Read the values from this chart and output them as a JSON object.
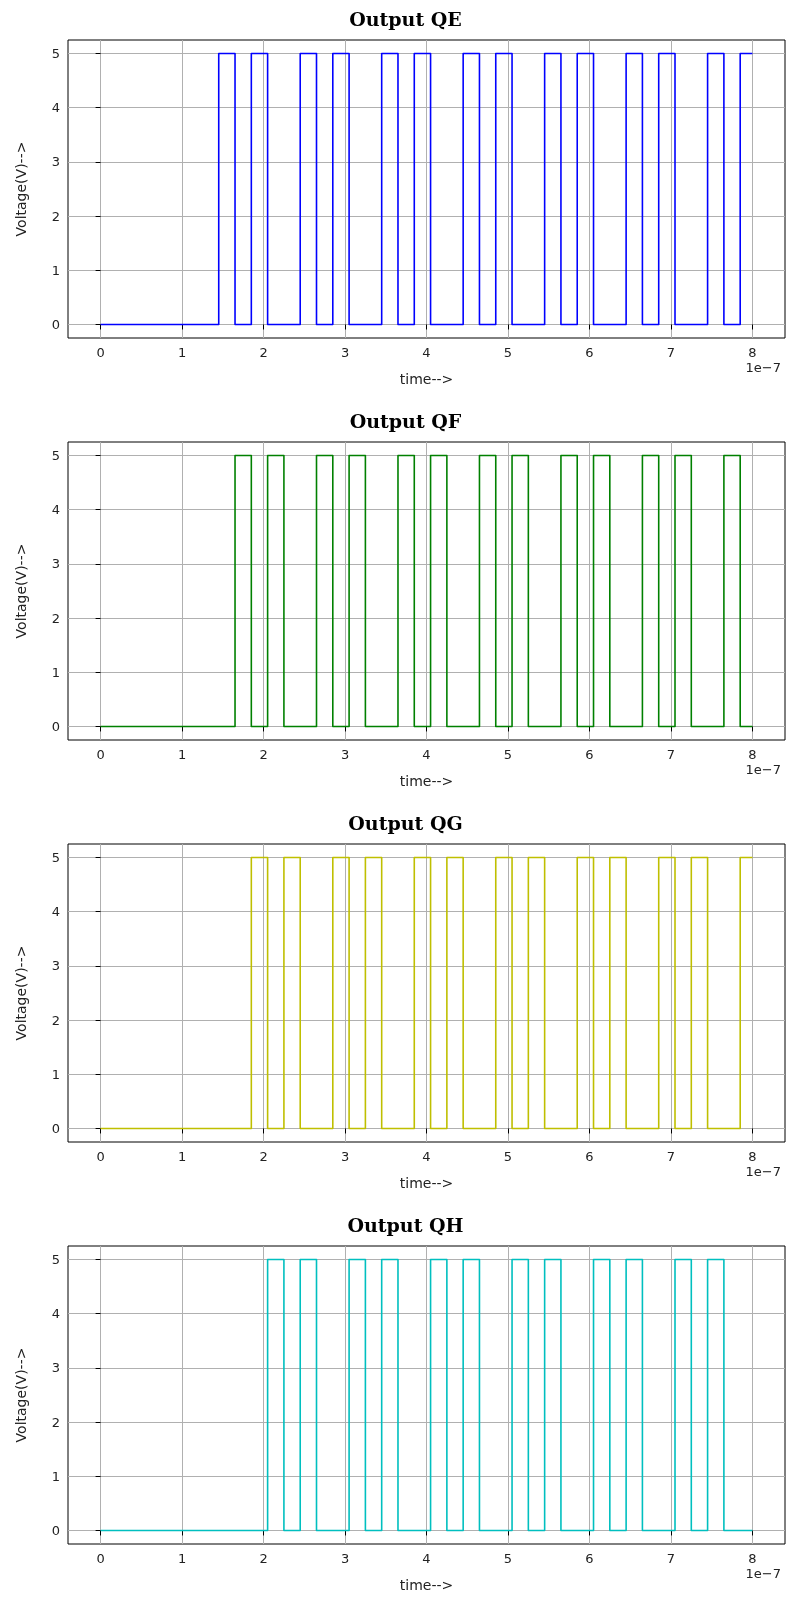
{
  "chart_data": [
    {
      "type": "step",
      "title": "Output QE",
      "xlabel": "time-->",
      "ylabel": "Voltage(V)-->",
      "annotations": [
        "1e−7"
      ],
      "xlim": [
        -0.4,
        8.4
      ],
      "xticks": [
        0,
        1,
        2,
        3,
        4,
        5,
        6,
        7,
        8
      ],
      "ylim": [
        -0.25,
        5.25
      ],
      "yticks": [
        0,
        1,
        2,
        3,
        4,
        5
      ],
      "grid": true,
      "series": [
        {
          "color": "#0000ff",
          "x": [
            0,
            1.45,
            1.65,
            1.85,
            2.05,
            2.45,
            2.65,
            2.85,
            3.05,
            3.45,
            3.65,
            3.85,
            4.05,
            4.45,
            4.65,
            4.85,
            5.05,
            5.45,
            5.65,
            5.85,
            6.05,
            6.45,
            6.65,
            6.85,
            7.05,
            7.45,
            7.65,
            7.85,
            8
          ],
          "values": [
            0,
            5,
            0,
            5,
            0,
            5,
            0,
            5,
            0,
            5,
            0,
            5,
            0,
            5,
            0,
            5,
            0,
            5,
            0,
            5,
            0,
            5,
            0,
            5,
            0,
            5,
            0,
            5,
            5
          ]
        }
      ]
    },
    {
      "type": "step",
      "title": "Output QF",
      "xlabel": "time-->",
      "ylabel": "Voltage(V)-->",
      "annotations": [
        "1e−7"
      ],
      "xlim": [
        -0.4,
        8.4
      ],
      "xticks": [
        0,
        1,
        2,
        3,
        4,
        5,
        6,
        7,
        8
      ],
      "ylim": [
        -0.25,
        5.25
      ],
      "yticks": [
        0,
        1,
        2,
        3,
        4,
        5
      ],
      "grid": true,
      "series": [
        {
          "color": "#008000",
          "x": [
            0,
            1.65,
            1.85,
            2.05,
            2.25,
            2.65,
            2.85,
            3.05,
            3.25,
            3.65,
            3.85,
            4.05,
            4.25,
            4.65,
            4.85,
            5.05,
            5.25,
            5.65,
            5.85,
            6.05,
            6.25,
            6.65,
            6.85,
            7.05,
            7.25,
            7.65,
            7.85,
            8
          ],
          "values": [
            0,
            5,
            0,
            5,
            0,
            5,
            0,
            5,
            0,
            5,
            0,
            5,
            0,
            5,
            0,
            5,
            0,
            5,
            0,
            5,
            0,
            5,
            0,
            5,
            0,
            5,
            0,
            0
          ]
        }
      ]
    },
    {
      "type": "step",
      "title": "Output QG",
      "xlabel": "time-->",
      "ylabel": "Voltage(V)-->",
      "annotations": [
        "1e−7"
      ],
      "xlim": [
        -0.4,
        8.4
      ],
      "xticks": [
        0,
        1,
        2,
        3,
        4,
        5,
        6,
        7,
        8
      ],
      "ylim": [
        -0.25,
        5.25
      ],
      "yticks": [
        0,
        1,
        2,
        3,
        4,
        5
      ],
      "grid": true,
      "series": [
        {
          "color": "#bfbf00",
          "x": [
            0,
            1.85,
            2.05,
            2.25,
            2.45,
            2.85,
            3.05,
            3.25,
            3.45,
            3.85,
            4.05,
            4.25,
            4.45,
            4.85,
            5.05,
            5.25,
            5.45,
            5.85,
            6.05,
            6.25,
            6.45,
            6.85,
            7.05,
            7.25,
            7.45,
            7.85,
            8
          ],
          "values": [
            0,
            5,
            0,
            5,
            0,
            5,
            0,
            5,
            0,
            5,
            0,
            5,
            0,
            5,
            0,
            5,
            0,
            5,
            0,
            5,
            0,
            5,
            0,
            5,
            0,
            5,
            5
          ]
        }
      ]
    },
    {
      "type": "step",
      "title": "Output QH",
      "xlabel": "time-->",
      "ylabel": "Voltage(V)-->",
      "annotations": [
        "1e−7"
      ],
      "xlim": [
        -0.4,
        8.4
      ],
      "xticks": [
        0,
        1,
        2,
        3,
        4,
        5,
        6,
        7,
        8
      ],
      "ylim": [
        -0.25,
        5.25
      ],
      "yticks": [
        0,
        1,
        2,
        3,
        4,
        5
      ],
      "grid": true,
      "series": [
        {
          "color": "#00bfbf",
          "x": [
            0,
            2.05,
            2.25,
            2.45,
            2.65,
            3.05,
            3.25,
            3.45,
            3.65,
            4.05,
            4.25,
            4.45,
            4.65,
            5.05,
            5.25,
            5.45,
            5.65,
            6.05,
            6.25,
            6.45,
            6.65,
            7.05,
            7.25,
            7.45,
            7.65,
            8
          ],
          "values": [
            0,
            5,
            0,
            5,
            0,
            5,
            0,
            5,
            0,
            5,
            0,
            5,
            0,
            5,
            0,
            5,
            0,
            5,
            0,
            5,
            0,
            5,
            0,
            5,
            0,
            0
          ]
        }
      ]
    }
  ]
}
